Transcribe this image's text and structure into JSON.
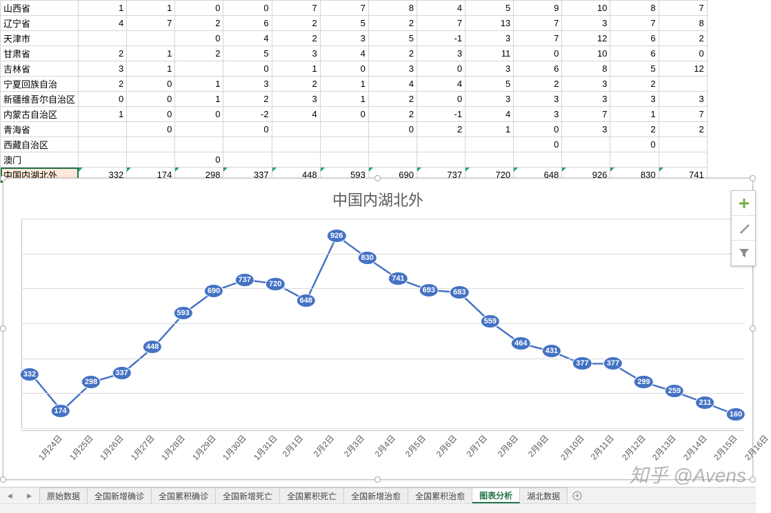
{
  "colors": {
    "grid_border": "#d4d4d4",
    "excel_green": "#217346",
    "triangle": "#21a366",
    "chart_line": "#4472c4",
    "chart_grid": "#d9d9d9",
    "text_gray": "#595959"
  },
  "col_widths_pct": [
    9.8,
    6.4,
    6.4,
    6.4,
    6.4,
    6.4,
    6.4,
    6.4,
    6.4,
    6.4,
    6.4,
    6.4,
    6.4,
    6.4,
    6.4
  ],
  "rows": [
    {
      "label": "山西省",
      "vals": [
        "1",
        "1",
        "0",
        "0",
        "7",
        "7",
        "8",
        "4",
        "5",
        "9",
        "10",
        "8",
        "7"
      ]
    },
    {
      "label": "辽宁省",
      "vals": [
        "4",
        "7",
        "2",
        "6",
        "2",
        "5",
        "2",
        "7",
        "13",
        "7",
        "3",
        "7",
        "8"
      ]
    },
    {
      "label": "天津市",
      "vals": [
        "",
        "",
        "0",
        "4",
        "2",
        "3",
        "5",
        "-1",
        "3",
        "7",
        "12",
        "6",
        "2"
      ]
    },
    {
      "label": "甘肃省",
      "vals": [
        "2",
        "1",
        "2",
        "5",
        "3",
        "4",
        "2",
        "3",
        "11",
        "0",
        "10",
        "6",
        "0"
      ]
    },
    {
      "label": "吉林省",
      "vals": [
        "3",
        "1",
        "",
        "0",
        "1",
        "0",
        "3",
        "0",
        "3",
        "6",
        "8",
        "5",
        "12"
      ]
    },
    {
      "label": "宁夏回族自治",
      "vals": [
        "2",
        "0",
        "1",
        "3",
        "2",
        "1",
        "4",
        "4",
        "5",
        "2",
        "3",
        "2",
        ""
      ]
    },
    {
      "label": "新疆维吾尔自治区",
      "vals": [
        "0",
        "0",
        "1",
        "2",
        "3",
        "1",
        "2",
        "0",
        "3",
        "3",
        "3",
        "3",
        "3"
      ]
    },
    {
      "label": "内蒙古自治区",
      "vals": [
        "1",
        "0",
        "0",
        "-2",
        "4",
        "0",
        "2",
        "-1",
        "4",
        "3",
        "7",
        "1",
        "7"
      ]
    },
    {
      "label": "青海省",
      "vals": [
        "",
        "0",
        "",
        "0",
        "",
        "",
        "0",
        "2",
        "1",
        "0",
        "3",
        "2",
        "2"
      ]
    },
    {
      "label": "西藏自治区",
      "vals": [
        "",
        "",
        "",
        "",
        "",
        "",
        "",
        "",
        "",
        "0",
        "",
        "0",
        ""
      ]
    },
    {
      "label": "澳门",
      "vals": [
        "",
        "",
        "0",
        "",
        "",
        "",
        "",
        "",
        "",
        "",
        "",
        "",
        ""
      ]
    },
    {
      "label": "中国内湖北外",
      "selected": true,
      "triangles": true,
      "vals": [
        "332",
        "174",
        "298",
        "337",
        "448",
        "593",
        "690",
        "737",
        "720",
        "648",
        "926",
        "830",
        "741"
      ]
    }
  ],
  "chart": {
    "title": "中国内湖北外",
    "type": "line",
    "x_labels": [
      "1月24日",
      "1月25日",
      "1月26日",
      "1月27日",
      "1月28日",
      "1月29日",
      "1月30日",
      "1月31日",
      "2月1日",
      "2月2日",
      "2月3日",
      "2月4日",
      "2月5日",
      "2月6日",
      "2月7日",
      "2月8日",
      "2月9日",
      "2月10日",
      "2月11日",
      "2月12日",
      "2月13日",
      "2月14日",
      "2月15日",
      "2月16日"
    ],
    "values": [
      332,
      174,
      298,
      337,
      448,
      593,
      690,
      737,
      720,
      648,
      926,
      830,
      741,
      693,
      683,
      559,
      464,
      431,
      377,
      377,
      299,
      259,
      211,
      160
    ],
    "ymin": 100,
    "ymax": 1000,
    "gridlines": 6,
    "line_color": "#4472c4",
    "line_width": 2.5,
    "marker_fill": "#4472c4",
    "marker_text_color": "#ffffff",
    "marker_fontsize": 11,
    "background": "#ffffff",
    "title_fontsize": 22
  },
  "tabs": {
    "items": [
      "原始数据",
      "全国新增确诊",
      "全国累积确诊",
      "全国新增死亡",
      "全国累积死亡",
      "全国新增治愈",
      "全国累积治愈",
      "图表分析",
      "湖北数据"
    ],
    "active_index": 7
  },
  "watermark": "知乎 @Avens",
  "flyout": {
    "plus_color": "#70ad47",
    "items": [
      "chart-elements",
      "chart-styles",
      "chart-filters"
    ]
  }
}
